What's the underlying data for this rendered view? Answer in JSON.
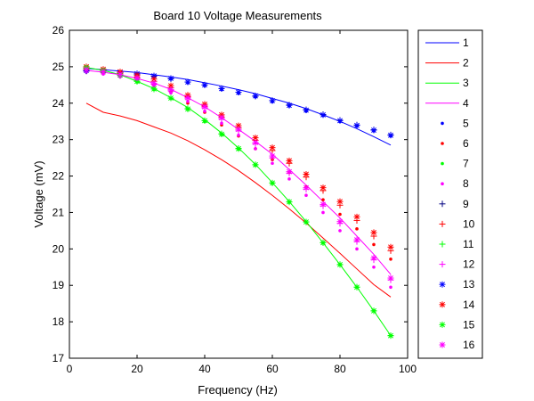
{
  "chart_data": {
    "type": "line",
    "title": "Board 10 Voltage Measurements",
    "xlabel": "Frequency (Hz)",
    "ylabel": "Voltage (mV)",
    "xlim": [
      0,
      100
    ],
    "ylim": [
      17,
      26
    ],
    "xticks": [
      0,
      20,
      40,
      60,
      80,
      100
    ],
    "yticks": [
      17,
      18,
      19,
      20,
      21,
      22,
      23,
      24,
      25,
      26
    ],
    "grid": false,
    "legend_position": "outside-right",
    "series": [
      {
        "name": "1",
        "style": "line",
        "color": "#0000ff",
        "x": [
          5,
          10,
          15,
          20,
          25,
          30,
          35,
          40,
          45,
          50,
          55,
          60,
          65,
          70,
          75,
          80,
          85,
          90,
          95
        ],
        "y": [
          24.95,
          24.92,
          24.88,
          24.84,
          24.78,
          24.72,
          24.65,
          24.56,
          24.47,
          24.37,
          24.26,
          24.13,
          24.0,
          23.85,
          23.68,
          23.5,
          23.3,
          23.08,
          22.85
        ]
      },
      {
        "name": "2",
        "style": "line",
        "color": "#ff0000",
        "x": [
          5,
          10,
          15,
          20,
          25,
          30,
          35,
          40,
          45,
          50,
          55,
          60,
          65,
          70,
          75,
          80,
          85,
          90,
          95
        ],
        "y": [
          24.0,
          23.75,
          23.65,
          23.52,
          23.35,
          23.18,
          22.97,
          22.72,
          22.45,
          22.15,
          21.82,
          21.47,
          21.1,
          20.71,
          20.3,
          19.88,
          19.45,
          19.02,
          18.68
        ]
      },
      {
        "name": "3",
        "style": "line",
        "color": "#00ff00",
        "x": [
          5,
          10,
          15,
          20,
          25,
          30,
          35,
          40,
          45,
          50,
          55,
          60,
          65,
          70,
          75,
          80,
          85,
          90,
          95
        ],
        "y": [
          24.98,
          24.9,
          24.78,
          24.6,
          24.4,
          24.15,
          23.88,
          23.55,
          23.18,
          22.77,
          22.32,
          21.82,
          21.3,
          20.75,
          20.17,
          19.57,
          18.95,
          18.3,
          17.62
        ]
      },
      {
        "name": "4",
        "style": "line",
        "color": "#ff00ff",
        "x": [
          5,
          10,
          15,
          20,
          25,
          30,
          35,
          40,
          45,
          50,
          55,
          60,
          65,
          70,
          75,
          80,
          85,
          90,
          95
        ],
        "y": [
          24.9,
          24.85,
          24.78,
          24.68,
          24.55,
          24.38,
          24.15,
          23.9,
          23.6,
          23.28,
          22.95,
          22.6,
          22.18,
          21.75,
          21.3,
          20.85,
          20.35,
          19.85,
          19.3
        ]
      },
      {
        "name": "5",
        "style": "marker",
        "marker": "dot",
        "color": "#0000ff",
        "x": [
          5,
          10,
          15,
          20,
          25,
          30,
          35,
          40,
          45,
          50,
          55,
          60,
          65,
          70,
          75,
          80,
          85,
          90,
          95
        ],
        "y": [
          24.88,
          24.87,
          24.83,
          24.8,
          24.72,
          24.66,
          24.56,
          24.48,
          24.37,
          24.27,
          24.17,
          24.04,
          23.92,
          23.78,
          23.66,
          23.5,
          23.37,
          23.24,
          23.1
        ]
      },
      {
        "name": "6",
        "style": "marker",
        "marker": "dot",
        "color": "#ff0000",
        "x": [
          5,
          10,
          15,
          20,
          25,
          30,
          35,
          40,
          45,
          50,
          55,
          60,
          65,
          70,
          75,
          80,
          85,
          90,
          95
        ],
        "y": [
          24.9,
          24.85,
          24.75,
          24.65,
          24.5,
          24.3,
          24.0,
          23.75,
          23.4,
          23.1,
          22.75,
          22.45,
          22.1,
          21.7,
          21.35,
          20.95,
          20.55,
          20.12,
          19.72
        ]
      },
      {
        "name": "7",
        "style": "marker",
        "marker": "dot",
        "color": "#00ff00",
        "x": [
          5,
          10,
          15,
          20,
          25,
          30,
          35,
          40,
          45,
          50,
          55,
          60,
          65,
          70,
          75,
          80,
          85,
          90,
          95
        ],
        "y": [
          24.95,
          24.88,
          24.76,
          24.58,
          24.38,
          24.13,
          23.83,
          23.5,
          23.14,
          22.74,
          22.3,
          21.8,
          21.28,
          20.73,
          20.16,
          19.57,
          18.95,
          18.3,
          17.62
        ]
      },
      {
        "name": "8",
        "style": "marker",
        "marker": "dot",
        "color": "#ff00ff",
        "x": [
          5,
          10,
          15,
          20,
          25,
          30,
          35,
          40,
          45,
          50,
          55,
          60,
          65,
          70,
          75,
          80,
          85,
          90,
          95
        ],
        "y": [
          24.85,
          24.8,
          24.72,
          24.62,
          24.47,
          24.28,
          24.05,
          23.78,
          23.45,
          23.12,
          22.75,
          22.35,
          21.92,
          21.47,
          21.0,
          20.5,
          20.0,
          19.5,
          18.95
        ]
      },
      {
        "name": "9",
        "style": "marker",
        "marker": "plus",
        "color": "#000080",
        "x": [
          5,
          10,
          15,
          20,
          25,
          30,
          35,
          40,
          45,
          50,
          55,
          60,
          65,
          70,
          75,
          80,
          85,
          90,
          95
        ],
        "y": [
          24.88,
          24.88,
          24.84,
          24.8,
          24.74,
          24.67,
          24.58,
          24.5,
          24.4,
          24.3,
          24.19,
          24.07,
          23.95,
          23.82,
          23.69,
          23.53,
          23.4,
          23.27,
          23.13
        ]
      },
      {
        "name": "10",
        "style": "marker",
        "marker": "plus",
        "color": "#ff0000",
        "x": [
          5,
          10,
          15,
          20,
          25,
          30,
          35,
          40,
          45,
          50,
          55,
          60,
          65,
          70,
          75,
          80,
          85,
          90,
          95
        ],
        "y": [
          24.95,
          24.9,
          24.82,
          24.72,
          24.6,
          24.42,
          24.18,
          23.92,
          23.62,
          23.32,
          22.98,
          22.7,
          22.35,
          21.97,
          21.6,
          21.2,
          20.78,
          20.35,
          19.95
        ]
      },
      {
        "name": "11",
        "style": "marker",
        "marker": "plus",
        "color": "#00ff00",
        "x": [
          5,
          10,
          15,
          20,
          25,
          30,
          35,
          40,
          45,
          50,
          55,
          60,
          65,
          70,
          75,
          80,
          85,
          90,
          95
        ],
        "y": [
          24.96,
          24.89,
          24.77,
          24.6,
          24.39,
          24.14,
          23.85,
          23.52,
          23.16,
          22.76,
          22.31,
          21.81,
          21.29,
          20.74,
          20.17,
          19.57,
          18.95,
          18.3,
          17.62
        ]
      },
      {
        "name": "12",
        "style": "marker",
        "marker": "plus",
        "color": "#ff00ff",
        "x": [
          5,
          10,
          15,
          20,
          25,
          30,
          35,
          40,
          45,
          50,
          55,
          60,
          65,
          70,
          75,
          80,
          85,
          90,
          95
        ],
        "y": [
          24.9,
          24.84,
          24.76,
          24.66,
          24.52,
          24.34,
          24.12,
          23.87,
          23.56,
          23.24,
          22.88,
          22.5,
          22.08,
          21.64,
          21.18,
          20.7,
          20.2,
          19.7,
          19.15
        ]
      },
      {
        "name": "13",
        "style": "marker",
        "marker": "star",
        "color": "#0000ff",
        "x": [
          5,
          10,
          15,
          20,
          25,
          30,
          35,
          40,
          45,
          50,
          55,
          60,
          65,
          70,
          75,
          80,
          85,
          90,
          95
        ],
        "y": [
          24.9,
          24.89,
          24.85,
          24.81,
          24.75,
          24.68,
          24.58,
          24.5,
          24.4,
          24.3,
          24.2,
          24.07,
          23.94,
          23.81,
          23.68,
          23.52,
          23.39,
          23.26,
          23.12
        ]
      },
      {
        "name": "14",
        "style": "marker",
        "marker": "star",
        "color": "#ff0000",
        "x": [
          5,
          10,
          15,
          20,
          25,
          30,
          35,
          40,
          45,
          50,
          55,
          60,
          65,
          70,
          75,
          80,
          85,
          90,
          95
        ],
        "y": [
          25.0,
          24.93,
          24.86,
          24.77,
          24.66,
          24.48,
          24.22,
          23.97,
          23.68,
          23.38,
          23.05,
          22.78,
          22.42,
          22.05,
          21.68,
          21.3,
          20.88,
          20.45,
          20.05
        ]
      },
      {
        "name": "15",
        "style": "marker",
        "marker": "star",
        "color": "#00ff00",
        "x": [
          5,
          10,
          15,
          20,
          25,
          30,
          35,
          40,
          45,
          50,
          55,
          60,
          65,
          70,
          75,
          80,
          85,
          90,
          95
        ],
        "y": [
          24.97,
          24.89,
          24.77,
          24.6,
          24.39,
          24.14,
          23.84,
          23.52,
          23.15,
          22.75,
          22.31,
          21.81,
          21.29,
          20.74,
          20.17,
          19.57,
          18.95,
          18.3,
          17.62
        ]
      },
      {
        "name": "16",
        "style": "marker",
        "marker": "star",
        "color": "#ff00ff",
        "x": [
          5,
          10,
          15,
          20,
          25,
          30,
          35,
          40,
          45,
          50,
          55,
          60,
          65,
          70,
          75,
          80,
          85,
          90,
          95
        ],
        "y": [
          24.92,
          24.86,
          24.79,
          24.69,
          24.55,
          24.37,
          24.15,
          23.9,
          23.6,
          23.28,
          22.92,
          22.55,
          22.12,
          21.68,
          21.22,
          20.75,
          20.25,
          19.75,
          19.2
        ]
      }
    ]
  }
}
